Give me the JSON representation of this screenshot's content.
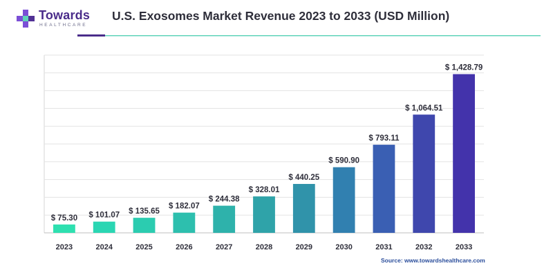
{
  "brand": {
    "name": "Towards",
    "tagline": "HEALTHCARE",
    "logo_icon": "plus-cross-icon",
    "colors": {
      "primary": "#4a2c8a",
      "accent": "#7b4fd6",
      "teal": "#5fd3b8"
    }
  },
  "source_text": "Source: www.towardshealthcare.com",
  "chart_data": {
    "type": "bar",
    "title": "U.S. Exosomes Market Revenue 2023 to 2033 (USD Million)",
    "xlabel": "",
    "ylabel": "",
    "categories": [
      "2023",
      "2024",
      "2025",
      "2026",
      "2027",
      "2028",
      "2029",
      "2030",
      "2031",
      "2032",
      "2033"
    ],
    "values": [
      75.3,
      101.07,
      135.65,
      182.07,
      244.38,
      328.01,
      440.25,
      590.9,
      793.11,
      1064.51,
      1428.79
    ],
    "value_labels": [
      "$ 75.30",
      "$ 101.07",
      "$ 135.65",
      "$ 182.07",
      "$ 244.38",
      "$ 328.01",
      "$ 440.25",
      "$ 590.90",
      "$ 793.11",
      "$ 1,064.51",
      "$ 1,428.79"
    ],
    "ylim": [
      0,
      1600
    ],
    "grid": true,
    "y_tick_labels_visible": false,
    "bar_colors": [
      "#2ee0b0",
      "#2ad6b3",
      "#2bccb0",
      "#2dbfae",
      "#2eb2ab",
      "#2fa3a9",
      "#3093aa",
      "#3180b0",
      "#3a5fb3",
      "#3f47ad",
      "#4333ab"
    ]
  }
}
